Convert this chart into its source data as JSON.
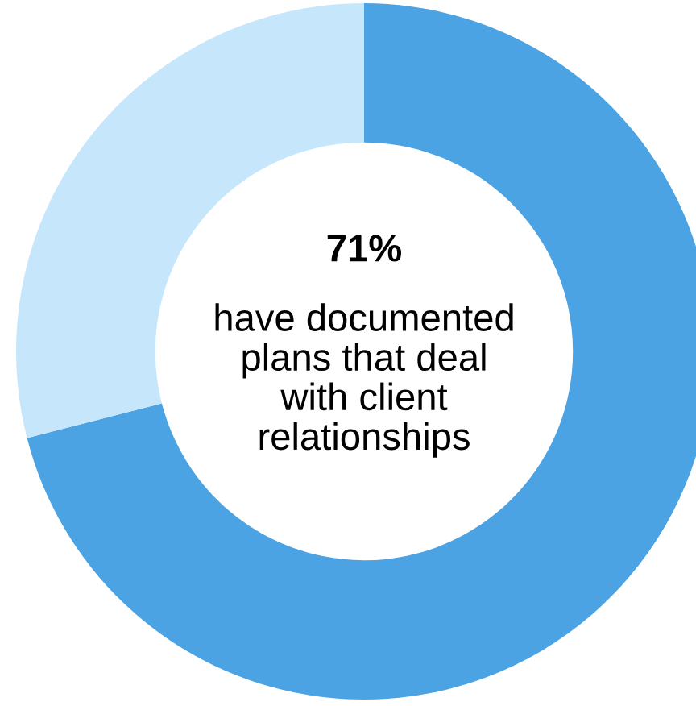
{
  "chart_data": {
    "type": "donut",
    "categories": [
      null,
      null
    ],
    "values": [
      71,
      29
    ],
    "colors": [
      "#4ca3e3",
      "#c6e6fc"
    ],
    "annotations": [
      "71%",
      "have documented\nplans that deal\nwith client\nrelationships"
    ]
  }
}
